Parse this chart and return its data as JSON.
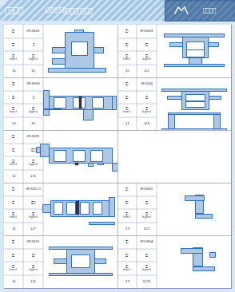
{
  "title_bold": "平开系列",
  "title_rest": " -GR55B隔热平开型材图",
  "brand": "金成铝业",
  "header_bg": "#2663a8",
  "header_stripe": "#3575c0",
  "content_bg": "#d8e8f4",
  "cell_bg": "#ffffff",
  "border_color": "#8899bb",
  "pc": "#2a6db5",
  "pf": "#adc8e6",
  "text_dark": "#333344",
  "rows": [
    {
      "left": {
        "model": "GR55B04",
        "name": "框",
        "t": "1.6",
        "w": "1.0",
        "ptype": "frame_tall"
      },
      "right": {
        "model": "GR55B04",
        "name": "中框",
        "t": "1.6",
        "w": "1.22",
        "ptype": "mid_tall_r1"
      }
    },
    {
      "left": {
        "model": "GR55BHO",
        "name": "框",
        "t": "1.0",
        "w": "1.0",
        "ptype": "frame_horiz"
      },
      "right": {
        "model": "GR55B4J",
        "name": "中框",
        "t": "1.4",
        "w": "1.68",
        "ptype": "mid_tall2"
      }
    },
    {
      "left": {
        "model": "GR55B05",
        "name": "内开扇",
        "t": "1.4",
        "w": "1.15",
        "ptype": "sash_in"
      },
      "right": null
    },
    {
      "left": {
        "model": "GR55B2+1",
        "name": "内开扇",
        "t": "1.4",
        "w": "1.27",
        "ptype": "sash_in2"
      },
      "right": {
        "model": "GR55B05",
        "name": "压线",
        "t": "0.9",
        "w": "0.21",
        "ptype": "bead1"
      }
    },
    {
      "left": {
        "model": "GR55B02",
        "name": "中框",
        "t": "1.6",
        "w": "1.16",
        "ptype": "mid_bottom"
      },
      "right": {
        "model": "GR55B5A",
        "name": "压线",
        "t": "0.9",
        "w": "0.276",
        "ptype": "bead2"
      }
    }
  ]
}
